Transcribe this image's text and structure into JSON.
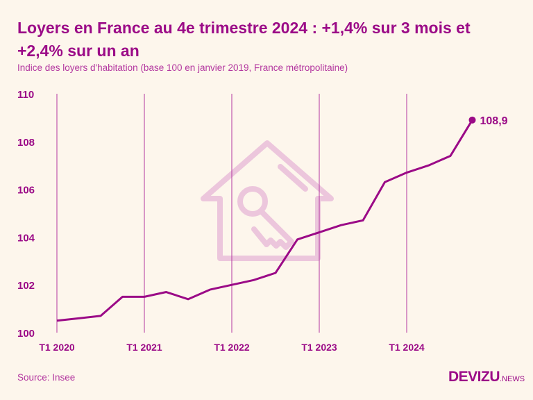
{
  "title": "Loyers en France au 4e trimestre 2024 : +1,4% sur 3 mois et +2,4% sur un an",
  "subtitle": "Indice des loyers d'habitation (base 100 en janvier 2019, France métropolitaine)",
  "source": "Source: Insee",
  "logo": {
    "main": "DEVIZU",
    "suffix": ".NEWS"
  },
  "colors": {
    "line": "#9b0a87",
    "background": "#fdf6ec",
    "watermark": "#ecc6dc"
  },
  "chart_data": {
    "type": "line",
    "x": [
      "T1 2020",
      "T2 2020",
      "T3 2020",
      "T4 2020",
      "T1 2021",
      "T2 2021",
      "T3 2021",
      "T4 2021",
      "T1 2022",
      "T2 2022",
      "T3 2022",
      "T4 2022",
      "T1 2023",
      "T2 2023",
      "T3 2023",
      "T4 2023",
      "T1 2024",
      "T2 2024",
      "T3 2024",
      "T4 2024"
    ],
    "values": [
      100.5,
      100.6,
      100.7,
      101.5,
      101.5,
      101.7,
      101.4,
      101.8,
      102.0,
      102.2,
      102.5,
      103.9,
      104.2,
      104.5,
      104.7,
      106.3,
      106.7,
      107.0,
      107.4,
      108.9
    ],
    "ylim": [
      100,
      110
    ],
    "yticks": [
      "100",
      "102",
      "104",
      "106",
      "108",
      "110"
    ],
    "xticks": [
      "T1 2020",
      "T1 2021",
      "T1 2022",
      "T1 2023",
      "T1 2024"
    ],
    "grid": "vertical lines at xticks",
    "end_label": "108,9",
    "watermark_icon": "house-key-icon"
  }
}
